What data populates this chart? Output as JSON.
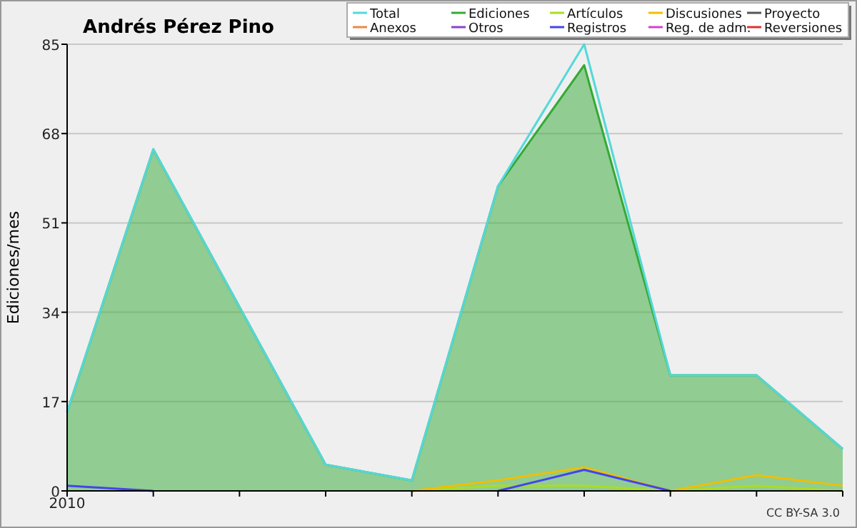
{
  "chart_data": {
    "type": "line",
    "title": "Andrés Pérez Pino",
    "ylabel": "Ediciones/mes",
    "categories": [
      "2010",
      null,
      null,
      null,
      null,
      null,
      null,
      null,
      null,
      null
    ],
    "ylim": [
      0,
      85
    ],
    "yticks": [
      0,
      17,
      34,
      51,
      68,
      85
    ],
    "grid": "y",
    "legend": "top right",
    "annotations": [
      "CC BY-SA 3.0"
    ],
    "series": [
      {
        "name": "Total",
        "color": "#55d8d8",
        "values": [
          15,
          65,
          35,
          5,
          2,
          58,
          85,
          22,
          22,
          8
        ]
      },
      {
        "name": "Ediciones",
        "type": "area",
        "color": "#33aa33",
        "values": [
          15,
          65,
          35,
          5,
          2,
          58,
          81,
          22,
          22,
          8
        ]
      },
      {
        "name": "Artículos",
        "color": "#aadd22",
        "values": [
          null,
          null,
          null,
          null,
          0,
          1,
          1,
          0,
          1,
          0
        ]
      },
      {
        "name": "Discusiones",
        "color": "#eec000",
        "values": [
          null,
          null,
          null,
          null,
          0,
          2,
          4.5,
          0,
          3,
          1
        ]
      },
      {
        "name": "Proyecto",
        "color": "#555555",
        "values": [
          null,
          null,
          null,
          null,
          null,
          null,
          null,
          null,
          null,
          null
        ]
      },
      {
        "name": "Anexos",
        "color": "#ee8844",
        "values": [
          null,
          null,
          null,
          null,
          null,
          null,
          null,
          null,
          null,
          null
        ]
      },
      {
        "name": "Otros",
        "color": "#8844cc",
        "values": [
          null,
          null,
          null,
          null,
          null,
          null,
          null,
          null,
          null,
          null
        ]
      },
      {
        "name": "Registros",
        "color": "#4444ee",
        "values": [
          1,
          0,
          null,
          null,
          null,
          0,
          4,
          0,
          null,
          null
        ]
      },
      {
        "name": "Reg. de adm.",
        "color": "#cc44cc",
        "values": [
          null,
          null,
          null,
          null,
          null,
          null,
          null,
          null,
          null,
          null
        ]
      },
      {
        "name": "Reversiones",
        "color": "#dd3333",
        "values": [
          null,
          null,
          null,
          null,
          null,
          null,
          null,
          null,
          null,
          null
        ]
      }
    ]
  }
}
